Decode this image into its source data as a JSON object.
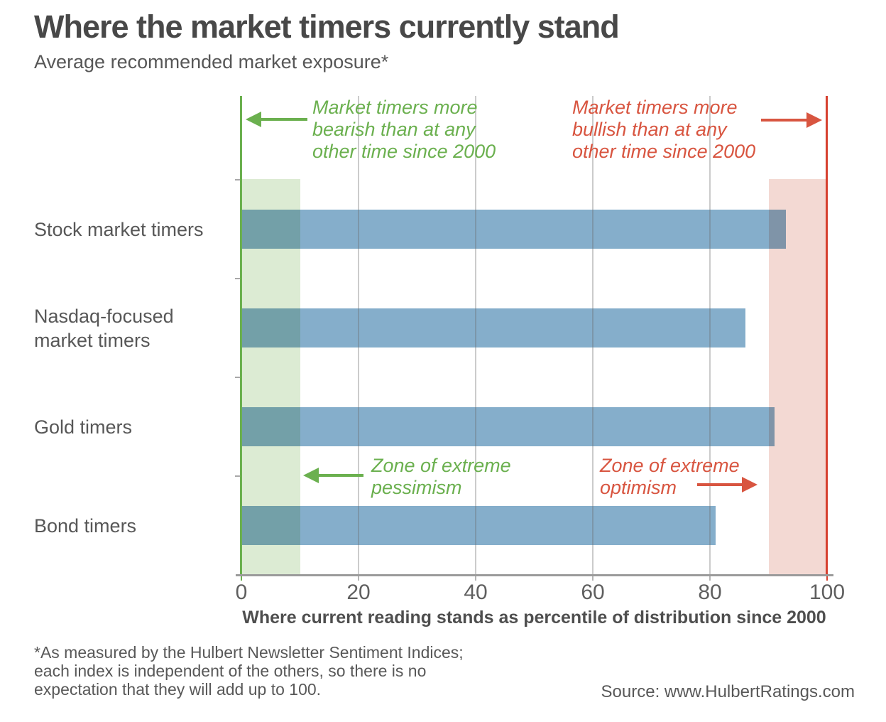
{
  "chart_data": {
    "type": "bar",
    "orientation": "horizontal",
    "title": "Where the market timers currently stand",
    "subtitle": "Average recommended market exposure*",
    "categories": [
      "Stock market timers",
      "Nasdaq-focused market timers",
      "Gold timers",
      "Bond timers"
    ],
    "category_label_lines": [
      [
        "Stock market timers"
      ],
      [
        "Nasdaq-focused",
        "market timers"
      ],
      [
        "Gold timers"
      ],
      [
        "Bond timers"
      ]
    ],
    "values": [
      93,
      86,
      91,
      81
    ],
    "xlabel": "Where current reading stands as percentile of distribution since 2000",
    "xlim": [
      0,
      100
    ],
    "xticks": [
      0,
      20,
      40,
      60,
      80,
      100
    ],
    "grid": true,
    "bar_color": "#85aecb",
    "zones": [
      {
        "name": "zone-extreme-pessimism",
        "from": 0,
        "to": 10,
        "color": "#dcebd3"
      },
      {
        "name": "zone-extreme-optimism",
        "from": 90,
        "to": 100,
        "color": "#f3d9d3"
      }
    ],
    "annotations": [
      {
        "name": "bearish-note",
        "lines": [
          "Market timers more",
          "bearish than at any",
          "other time since 2000"
        ],
        "color": "green",
        "arrow": "left"
      },
      {
        "name": "bullish-note",
        "lines": [
          "Market timers more",
          "bullish than at any",
          "other time since 2000"
        ],
        "color": "red",
        "arrow": "right"
      },
      {
        "name": "pessimism-note",
        "lines": [
          "Zone of extreme",
          "pessimism"
        ],
        "color": "green",
        "arrow": "left"
      },
      {
        "name": "optimism-note",
        "lines": [
          "Zone of extreme",
          "optimism"
        ],
        "color": "red",
        "arrow": "right"
      }
    ]
  },
  "colors": {
    "green": "#6bb04f",
    "red": "#d85540",
    "red_line": "#d6402f",
    "bar": "#85aecb",
    "zone_green": "#dcebd3",
    "zone_pink": "#f3d9d3"
  },
  "footnote_lines": [
    "*As measured by the Hulbert Newsletter Sentiment Indices;",
    "each index is independent of the others, so there is no",
    "expectation that they will add up to 100."
  ],
  "source": "Source: www.HulbertRatings.com"
}
